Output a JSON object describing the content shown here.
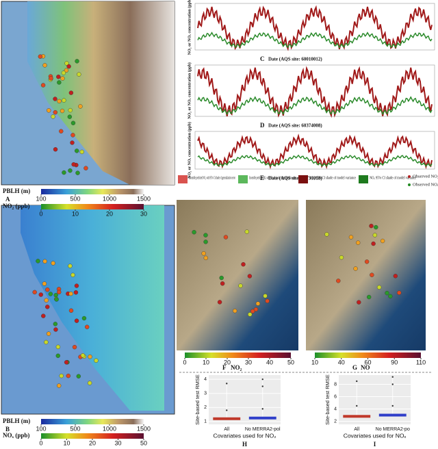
{
  "panel_a": {
    "label": "A",
    "pblh_title": "PBLH (m)",
    "pblh_ticks": [
      100,
      500,
      1000,
      1500
    ],
    "no2_title": "NO₂ (ppb)",
    "no2_ticks": [
      0,
      10,
      20,
      30
    ]
  },
  "panel_b": {
    "label": "B",
    "pblh_title": "PBLH (m)",
    "pblh_ticks": [
      100,
      500,
      1000,
      1500
    ],
    "nox_title": "NOₓ (ppb)",
    "nox_ticks": [
      0,
      10,
      20,
      30,
      50
    ]
  },
  "timeseries": [
    {
      "label": "C",
      "xlabel": "Date (AQS site: 60010012)",
      "ylabel": "NO₂ or NOₓ concentration (ppb)"
    },
    {
      "label": "D",
      "xlabel": "Date (AQS site: 60374008)",
      "ylabel": "NO₂ or NOₓ concentration (ppb)"
    },
    {
      "label": "E",
      "xlabel": "Date (AQS site: 60731018)",
      "ylabel": "NO₂ or NOₓ concentration (ppb)"
    }
  ],
  "legend": [
    {
      "name": "Ensemble predicted NO₂ with 95% CI shade of generalization error",
      "color": "#d9534f"
    },
    {
      "name": "Ensemble predicted NOₓ with 95% CI shade of generalization error",
      "color": "#5cb85c"
    },
    {
      "name": "NO₂ 95% CI shade of model variance",
      "color": "#7a1010"
    },
    {
      "name": "NOₓ 95% CI shade of model variance",
      "color": "#1e7a1e"
    },
    {
      "name": "Observed NO₂",
      "color": "#b22222"
    },
    {
      "name": "Observed NOₓ",
      "color": "#228b22"
    }
  ],
  "panel_f": {
    "label": "F",
    "title": "NO₂",
    "ticks": [
      0,
      10,
      20,
      30,
      40,
      50
    ]
  },
  "panel_g": {
    "label": "G",
    "title": "NO",
    "ticks": [
      10,
      40,
      60,
      90,
      110
    ]
  },
  "boxplots": [
    {
      "label": "H",
      "ylabel": "Site-based test RMSE",
      "xlabel": "Covariates used for NO₂",
      "categories": [
        "All",
        "No MERRA2-pol"
      ],
      "ylim": [
        0.8,
        4.3
      ],
      "yticks": [
        1,
        2,
        3,
        4
      ],
      "medians": [
        1.2,
        1.25
      ],
      "outliers": [
        [
          3.7,
          1.8
        ],
        [
          4.0,
          3.5,
          1.9
        ]
      ],
      "colors": [
        "#c0392b",
        "#2f3ec9"
      ]
    },
    {
      "label": "I",
      "ylabel": "Site-based test RMSE",
      "xlabel": "Covariates used for NOₓ",
      "categories": [
        "All",
        "No MERRA2-po"
      ],
      "ylim": [
        1.5,
        9.5
      ],
      "yticks": [
        2,
        4,
        6,
        8
      ],
      "medians": [
        2.8,
        3.0
      ],
      "outliers": [
        [
          8.5,
          4.5
        ],
        [
          9.2,
          8.0,
          4.5
        ]
      ],
      "colors": [
        "#c0392b",
        "#2f3ec9"
      ]
    }
  ]
}
